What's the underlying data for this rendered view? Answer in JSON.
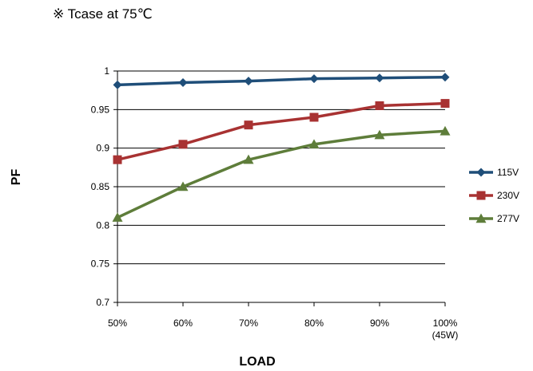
{
  "note": "※ Tcase at 75℃",
  "chart_data": {
    "type": "line",
    "title": "",
    "xlabel": "LOAD",
    "ylabel": "PF",
    "categories": [
      "50%",
      "60%",
      "70%",
      "80%",
      "90%",
      "100%\n(45W)"
    ],
    "ylim": [
      0.7,
      1.0
    ],
    "yticks": [
      "0.7",
      "0.75",
      "0.8",
      "0.85",
      "0.9",
      "0.95",
      "1"
    ],
    "grid": true,
    "legend": "right",
    "series": [
      {
        "name": "115V",
        "color": "#1f4e79",
        "marker": "diamond",
        "values": [
          0.982,
          0.985,
          0.987,
          0.99,
          0.991,
          0.992
        ]
      },
      {
        "name": "230V",
        "color": "#a83232",
        "marker": "square",
        "values": [
          0.885,
          0.905,
          0.93,
          0.94,
          0.955,
          0.958
        ]
      },
      {
        "name": "277V",
        "color": "#5e7d3a",
        "marker": "triangle",
        "values": [
          0.81,
          0.85,
          0.885,
          0.905,
          0.917,
          0.922
        ]
      }
    ]
  }
}
